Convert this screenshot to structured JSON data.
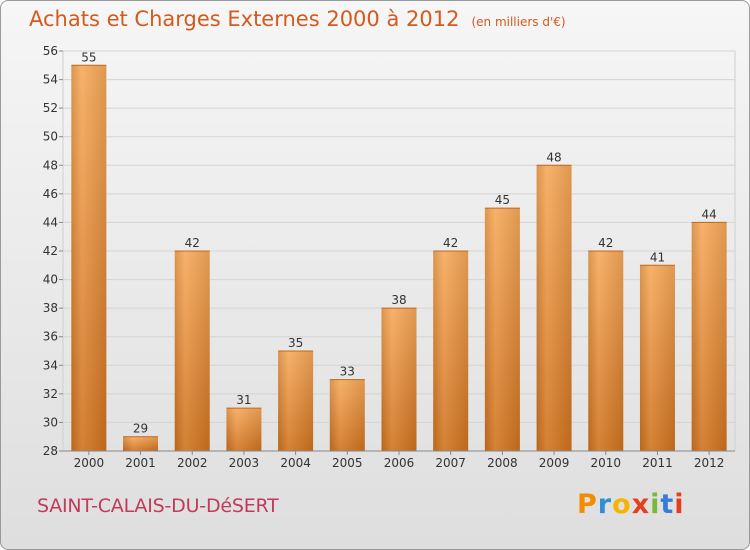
{
  "header": {
    "title": "Achats et Charges Externes 2000 à 2012",
    "subtitle": "(en milliers d'€)"
  },
  "footer": {
    "place": "SAINT-CALAIS-DU-DéSERT",
    "logo_letters": [
      "P",
      "r",
      "o",
      "x",
      "i",
      "t",
      "i"
    ],
    "logo_colors": [
      "#f28c00",
      "#2d8fd6",
      "#f4b400",
      "#e63d1e",
      "#78b83a",
      "#3a7bd5",
      "#e63d1e"
    ]
  },
  "chart_data": {
    "type": "bar",
    "title": "Achats et Charges Externes 2000 à 2012",
    "subtitle": "(en milliers d'€)",
    "categories": [
      "2000",
      "2001",
      "2002",
      "2003",
      "2004",
      "2005",
      "2006",
      "2007",
      "2008",
      "2009",
      "2010",
      "2011",
      "2012"
    ],
    "values": [
      55,
      29,
      42,
      31,
      35,
      33,
      38,
      42,
      45,
      48,
      42,
      41,
      44
    ],
    "value_labels": [
      "55",
      "29",
      "42",
      "31",
      "35",
      "33",
      "38",
      "42",
      "45",
      "48",
      "42",
      "41",
      "44"
    ],
    "yticks": [
      "28",
      "30",
      "32",
      "34",
      "36",
      "38",
      "40",
      "42",
      "44",
      "46",
      "48",
      "50",
      "52",
      "54",
      "56"
    ],
    "ylim": [
      28,
      56
    ],
    "grid": true,
    "bar_color": "#e8832e"
  }
}
